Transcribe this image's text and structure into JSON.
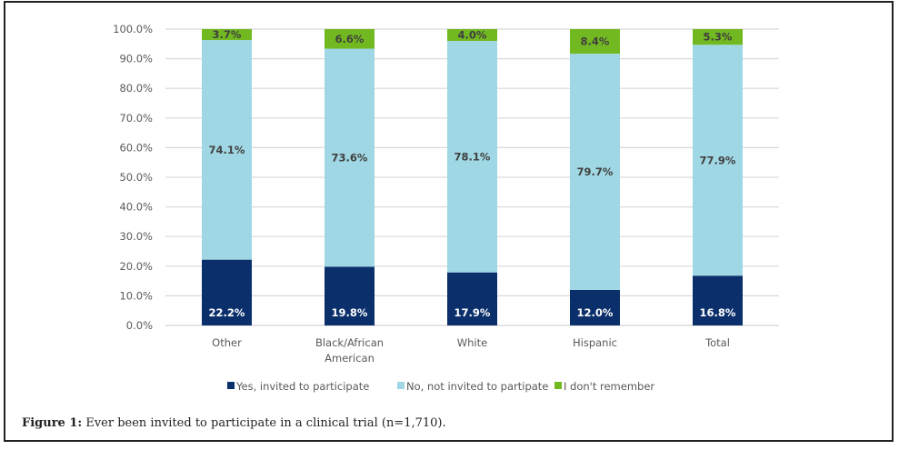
{
  "chart_data": {
    "type": "bar",
    "stacked": true,
    "title": "",
    "xlabel": "",
    "ylabel": "",
    "ylim": [
      0,
      100
    ],
    "yticks": [
      "0.0%",
      "10.0%",
      "20.0%",
      "30.0%",
      "40.0%",
      "50.0%",
      "60.0%",
      "70.0%",
      "80.0%",
      "90.0%",
      "100.0%"
    ],
    "grid": true,
    "legend_position": "bottom",
    "categories": [
      [
        "Other"
      ],
      [
        "Black/African",
        "American"
      ],
      [
        "White"
      ],
      [
        "Hispanic"
      ],
      [
        "Total"
      ]
    ],
    "series": [
      {
        "name": "Yes, invited to participate",
        "color": "#0b2f6b",
        "label_color": "#ffffff",
        "values": [
          22.2,
          19.8,
          17.9,
          12.0,
          16.8
        ],
        "labels": [
          "22.2%",
          "19.8%",
          "17.9%",
          "12.0%",
          "16.8%"
        ]
      },
      {
        "name": "No, not invited to partipate",
        "color": "#a0d7e4",
        "label_color": "#404040",
        "values": [
          74.1,
          73.6,
          78.1,
          79.7,
          77.9
        ],
        "labels": [
          "74.1%",
          "73.6%",
          "78.1%",
          "79.7%",
          "77.9%"
        ]
      },
      {
        "name": "I don't remember",
        "color": "#72b921",
        "label_color": "#404040",
        "values": [
          3.7,
          6.6,
          4.0,
          8.4,
          5.3
        ],
        "labels": [
          "3.7%",
          "6.6%",
          "4.0%",
          "8.4%",
          "5.3%"
        ]
      }
    ]
  },
  "caption": {
    "label": "Figure 1:",
    "text": " Ever been invited to participate in a clinical trial (n=1,710)."
  }
}
